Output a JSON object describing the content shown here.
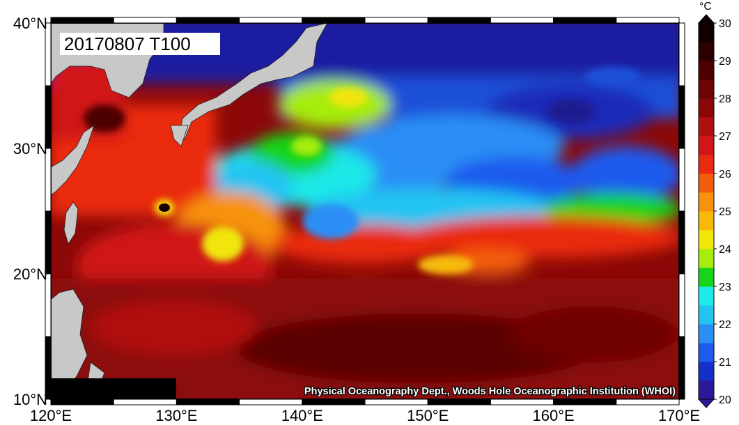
{
  "title": "20170807 T100",
  "credit": "Physical Oceanography Dept., Woods Hole Oceanographic Institution (WHOI)",
  "colorbar": {
    "unit": "°C",
    "min": 20,
    "max": 30,
    "labels": [
      "20",
      "21",
      "22",
      "23",
      "24",
      "25",
      "26",
      "27",
      "28",
      "29",
      "30"
    ],
    "colors": [
      "#2a1a9a",
      "#1530c8",
      "#1e5aee",
      "#2a8ef5",
      "#22c4f2",
      "#1ee8e8",
      "#18d418",
      "#a6ec0c",
      "#f0e60a",
      "#f7ba08",
      "#f7920a",
      "#f25e0c",
      "#ea2a10",
      "#d01616",
      "#b01010",
      "#8c0808",
      "#6e0404",
      "#4e0000",
      "#2a0000",
      "#120000"
    ]
  },
  "axes": {
    "lon_labels": [
      "120°E",
      "130°E",
      "140°E",
      "150°E",
      "160°E",
      "170°E"
    ],
    "lat_labels": [
      "40°N",
      "30°N",
      "20°N",
      "10°N"
    ]
  },
  "colors": {
    "land": "#c8c8c8",
    "mask": "#000000",
    "frame": "#000000"
  }
}
